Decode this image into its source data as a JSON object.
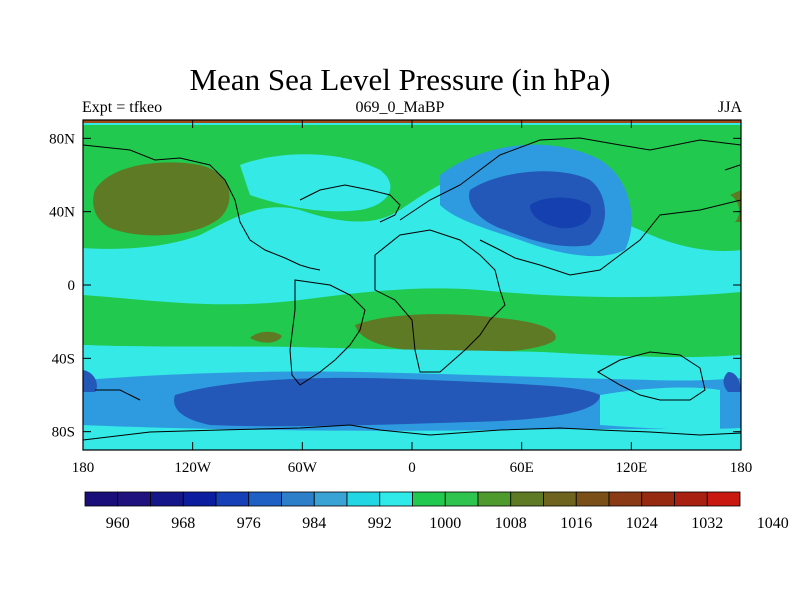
{
  "title": "Mean Sea Level Pressure (in hPa)",
  "subtitle_left": "Expt = tfkeo",
  "subtitle_center": "069_0_MaBP",
  "subtitle_right": "JJA",
  "x_ticks": [
    "180",
    "120W",
    "60W",
    "0",
    "60E",
    "120E",
    "180"
  ],
  "y_ticks": [
    "80N",
    "40N",
    "0",
    "40S",
    "80S"
  ],
  "colorbar": {
    "colors": [
      "#1a0f7a",
      "#1f127f",
      "#15168a",
      "#0d1da0",
      "#1540b8",
      "#1f60c4",
      "#2e7fc9",
      "#3aa3d5",
      "#23d6e3",
      "#2feae8",
      "#22c94f",
      "#2fc44d",
      "#4e9a2c",
      "#5e7a24",
      "#6e6420",
      "#7a5018",
      "#8a3a14",
      "#962a10",
      "#a82010",
      "#c81810"
    ],
    "labels": [
      "960",
      "968",
      "976",
      "984",
      "992",
      "1000",
      "1008",
      "1016",
      "1024",
      "1032",
      "1040"
    ]
  },
  "map": {
    "levels": [
      {
        "name": "low-1",
        "color": "#2358b8",
        "pressure_hpa": "976-984"
      },
      {
        "name": "low-2",
        "color": "#1540b0",
        "pressure_hpa": "968-976"
      },
      {
        "name": "mid-blue",
        "color": "#2e9be0",
        "pressure_hpa": "984-992"
      },
      {
        "name": "cyan",
        "color": "#34e9e6",
        "pressure_hpa": "992-1008"
      },
      {
        "name": "green",
        "color": "#22c94f",
        "pressure_hpa": "1008-1016"
      },
      {
        "name": "olive",
        "color": "#5e7a24",
        "pressure_hpa": "1016-1024"
      }
    ]
  }
}
